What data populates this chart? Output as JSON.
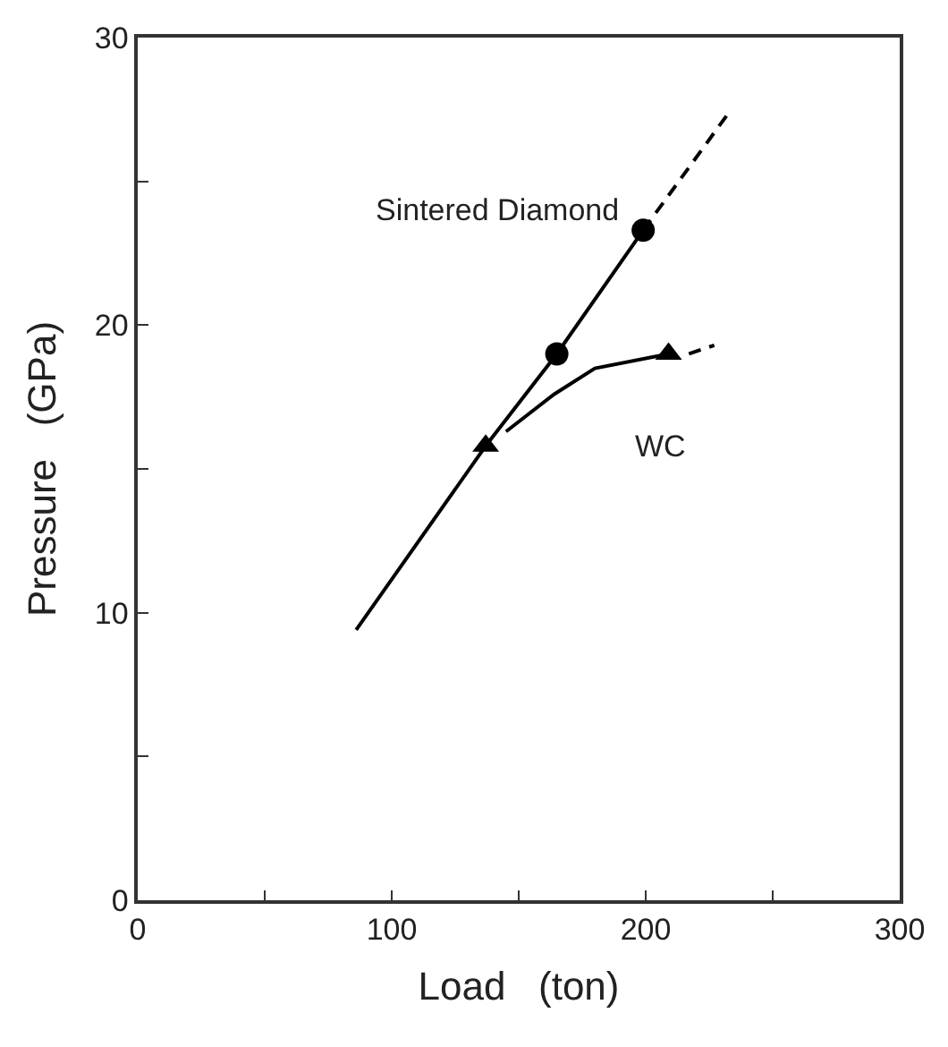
{
  "chart_data": {
    "type": "line",
    "xlabel": "Load   (ton)",
    "ylabel": "Pressure   (GPa)",
    "xlim": [
      0,
      300
    ],
    "ylim": [
      0,
      30
    ],
    "xticks": [
      0,
      {
        "value": 50,
        "label": null
      },
      100,
      {
        "value": 150,
        "label": null
      },
      200,
      {
        "value": 250,
        "label": null
      },
      300
    ],
    "yticks": [
      0,
      {
        "value": 5,
        "label": null
      },
      10,
      {
        "value": 15,
        "label": null
      },
      20,
      {
        "value": 25,
        "label": null
      },
      30
    ],
    "legend": false,
    "series": [
      {
        "color": "#000000",
        "marker": "none",
        "line_style": "solid",
        "x": [
          86,
          137,
          165,
          199
        ],
        "values": [
          9.4,
          15.8,
          19.0,
          23.3
        ]
      },
      {
        "color": "#000000",
        "marker": "none",
        "line_style": "dashed",
        "x": [
          199,
          232
        ],
        "values": [
          23.3,
          27.3
        ]
      },
      {
        "type": "scatter",
        "name": "Sintered Diamond",
        "color": "#000000",
        "marker": "circle",
        "x": [
          165,
          199
        ],
        "values": [
          19.0,
          23.3
        ]
      },
      {
        "color": "#000000",
        "marker": "none",
        "line_style": "solid",
        "x": [
          145,
          164,
          180,
          209
        ],
        "values": [
          16.3,
          17.6,
          18.5,
          19.0
        ]
      },
      {
        "color": "#000000",
        "marker": "none",
        "line_style": "dashed",
        "x": [
          217,
          227
        ],
        "values": [
          19.0,
          19.3
        ]
      },
      {
        "type": "scatter",
        "name": "WC",
        "color": "#000000",
        "marker": "triangle",
        "x": [
          137,
          209
        ],
        "values": [
          15.8,
          19.0
        ]
      }
    ]
  }
}
